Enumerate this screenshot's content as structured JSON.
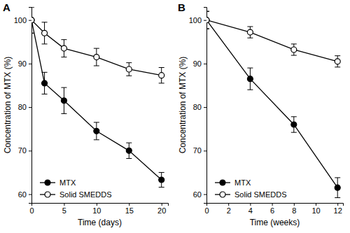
{
  "chart_data": [
    {
      "type": "line",
      "title": "A",
      "x_label": "Time (days)",
      "y_label": "Concentration of MTX (%)",
      "x": [
        0,
        2,
        5,
        10,
        15,
        20
      ],
      "xlim": [
        0,
        21
      ],
      "xticks": [
        0,
        5,
        10,
        15,
        20
      ],
      "ylim": [
        58,
        103
      ],
      "yticks": [
        60,
        70,
        80,
        90,
        100
      ],
      "legend": "lower left",
      "series": [
        {
          "name": "MTX",
          "color": "#000000",
          "marker": "filled-circle",
          "line_style": "solid",
          "values": [
            100,
            85.5,
            81.5,
            74.5,
            70,
            63.3
          ],
          "errors": [
            3,
            2.5,
            3,
            2,
            1.8,
            1.7
          ]
        },
        {
          "name": "Solid SMEDDS",
          "color": "#000000",
          "marker": "open-circle",
          "line_style": "solid",
          "values": [
            100,
            97,
            93.5,
            91.5,
            88.7,
            87.3
          ],
          "errors": [
            3,
            2.5,
            2,
            2,
            1.5,
            1.8
          ]
        }
      ]
    },
    {
      "type": "line",
      "title": "B",
      "x_label": "Time (weeks)",
      "y_label": "Concentration of MTX (%)",
      "x": [
        0,
        4,
        8,
        12
      ],
      "xlim": [
        0,
        12.5
      ],
      "xticks": [
        0,
        2,
        4,
        6,
        8,
        10,
        12
      ],
      "ylim": [
        58,
        103
      ],
      "yticks": [
        60,
        70,
        80,
        90,
        100
      ],
      "legend": "lower left",
      "series": [
        {
          "name": "MTX",
          "color": "#000000",
          "marker": "filled-circle",
          "line_style": "solid",
          "values": [
            100,
            86.5,
            76,
            61.5
          ],
          "errors": [
            2,
            2.5,
            1.8,
            2.3
          ]
        },
        {
          "name": "Solid SMEDDS",
          "color": "#000000",
          "marker": "open-circle",
          "line_style": "solid",
          "values": [
            100,
            97.2,
            93.2,
            90.5
          ],
          "errors": [
            2,
            1.3,
            1.3,
            1.3
          ]
        }
      ]
    }
  ]
}
